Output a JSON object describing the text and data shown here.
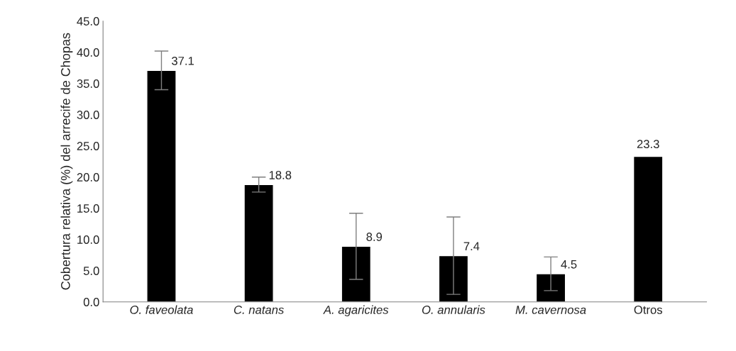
{
  "chart_data": {
    "type": "bar",
    "ylabel": "Cobertura relativa (%) del arrecife de Chopas",
    "categories": [
      "O. faveolata",
      "C. natans",
      "A. agaricites",
      "O. annularis",
      "M. cavernosa",
      "Otros"
    ],
    "values": [
      37.1,
      18.8,
      8.9,
      7.4,
      4.5,
      23.3
    ],
    "errors": [
      3.1,
      1.2,
      5.3,
      6.2,
      2.7,
      null
    ],
    "color": "#000000",
    "data_labels": true,
    "ylim": [
      0,
      45
    ],
    "yticks": [
      {
        "value": 0,
        "label": "0.0"
      },
      {
        "value": 5,
        "label": "5.0"
      },
      {
        "value": 10,
        "label": "10.0"
      },
      {
        "value": 15,
        "label": "15.0"
      },
      {
        "value": 20,
        "label": "20.0"
      },
      {
        "value": 25,
        "label": "25.0"
      },
      {
        "value": 30,
        "label": "30.0"
      },
      {
        "value": 35,
        "label": "35.0"
      },
      {
        "value": 40,
        "label": "40.0"
      },
      {
        "value": 45,
        "label": "45.0"
      }
    ],
    "grid": false,
    "legend": false
  }
}
